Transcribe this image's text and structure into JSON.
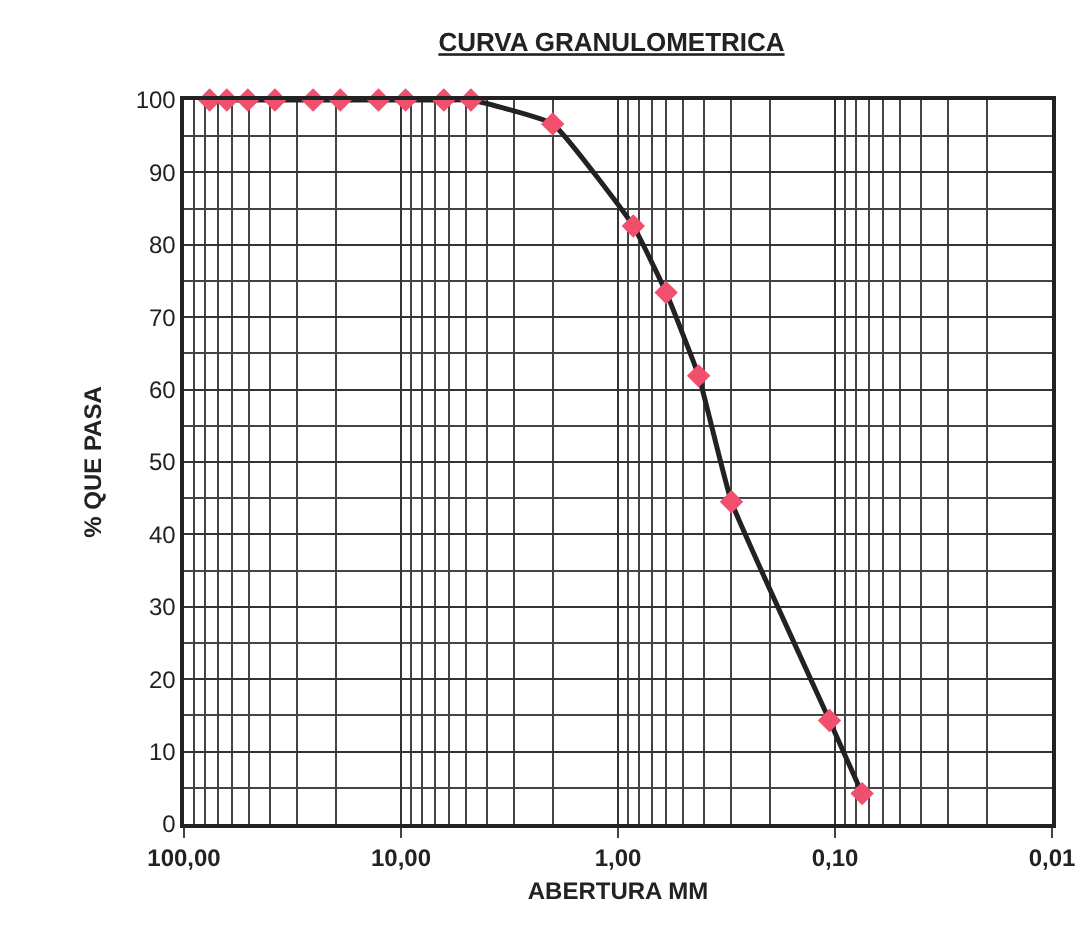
{
  "chart_data": {
    "type": "line",
    "title": "CURVA GRANULOMETRICA",
    "xlabel": "ABERTURA MM",
    "ylabel": "% QUE PASA",
    "x": [
      76.2,
      63.5,
      50.8,
      38.1,
      25.4,
      19.05,
      12.7,
      9.525,
      6.35,
      4.76,
      2.0,
      0.85,
      0.6,
      0.425,
      0.3,
      0.106,
      0.075
    ],
    "series": [
      {
        "color": "#222222",
        "colors": [
          "#f0506e",
          "#f0506e",
          "#f0506e",
          "#f0506e",
          "#f0506e",
          "#f0506e",
          "#f0506e",
          "#f0506e",
          "#f0506e",
          "#f0506e",
          "#f0506e",
          "#f0506e",
          "#f0506e",
          "#f0506e",
          "#f0506e",
          "#f0506e",
          "#f0506e"
        ],
        "values": [
          100,
          100,
          100,
          100,
          100,
          100,
          100,
          100,
          100,
          100,
          96.7,
          82.6,
          73.4,
          61.9,
          44.5,
          14.3,
          4.2
        ]
      }
    ],
    "log": "x",
    "xlim": [
      100,
      0.01
    ],
    "xticks": [
      {
        "value": 100,
        "label": "100,00"
      },
      {
        "value": 10,
        "label": "10,00"
      },
      {
        "value": 1,
        "label": "1,00"
      },
      {
        "value": 0.1,
        "label": "0,10"
      },
      {
        "value": 0.01,
        "label": "0,01"
      }
    ],
    "ylim": [
      0,
      100
    ],
    "yticks": [
      0,
      10,
      20,
      30,
      40,
      50,
      60,
      70,
      80,
      90,
      100
    ],
    "grid": true,
    "marker": "diamond",
    "line_style": "solid",
    "legend": false
  }
}
